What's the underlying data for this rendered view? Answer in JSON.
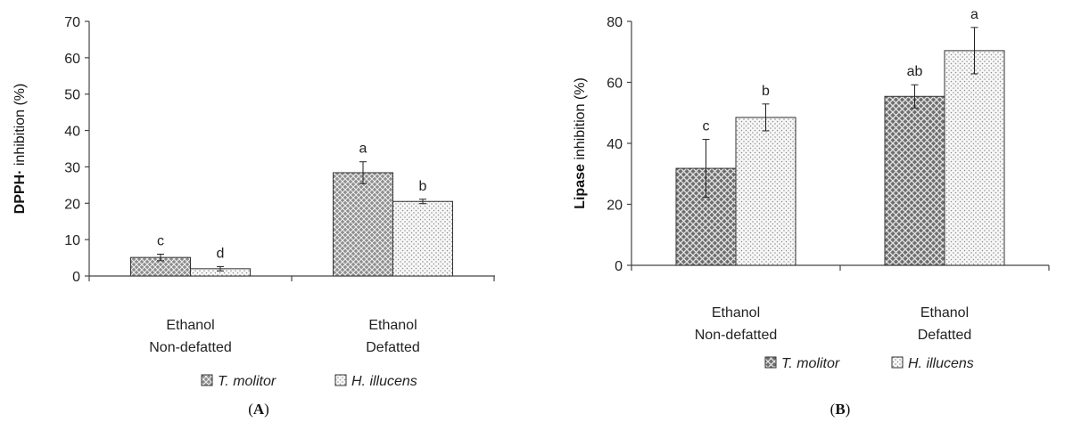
{
  "chart_data": [
    {
      "type": "bar",
      "panel_label": "A",
      "ylabel_bold": "DPPH·",
      "ylabel_rest": " inhibition (%)",
      "ylim": [
        0,
        70
      ],
      "yticks": [
        0,
        10,
        20,
        30,
        40,
        50,
        60,
        70
      ],
      "categories": [
        [
          "Ethanol",
          "Non-defatted"
        ],
        [
          "Ethanol",
          "Defatted"
        ]
      ],
      "series": [
        {
          "name": "T. molitor",
          "values": [
            5.1,
            28.4
          ],
          "errors": [
            0.9,
            3.0
          ],
          "letters": [
            "c",
            "a"
          ]
        },
        {
          "name": "H. illucens",
          "values": [
            2.0,
            20.5
          ],
          "errors": [
            0.6,
            0.6
          ],
          "letters": [
            "d",
            "b"
          ]
        }
      ],
      "grid": false,
      "legend": "bottom"
    },
    {
      "type": "bar",
      "panel_label": "B",
      "ylabel_bold": "Lipase",
      "ylabel_rest": " inhibition (%)",
      "ylim": [
        0,
        80
      ],
      "yticks": [
        0,
        20,
        40,
        60,
        80
      ],
      "categories": [
        [
          "Ethanol",
          "Non-defatted"
        ],
        [
          "Ethanol",
          "Defatted"
        ]
      ],
      "series": [
        {
          "name": "T. molitor",
          "values": [
            31.8,
            55.4
          ],
          "errors": [
            9.5,
            3.8
          ],
          "letters": [
            "c",
            "ab"
          ]
        },
        {
          "name": "H. illucens",
          "values": [
            48.5,
            70.4
          ],
          "errors": [
            4.4,
            7.6
          ],
          "letters": [
            "b",
            "a"
          ]
        }
      ],
      "grid": false,
      "legend": "bottom"
    }
  ],
  "colors": {
    "series1_fill": "#8a8a8a",
    "series2_fill": "#ececec",
    "axis": "#444444"
  }
}
